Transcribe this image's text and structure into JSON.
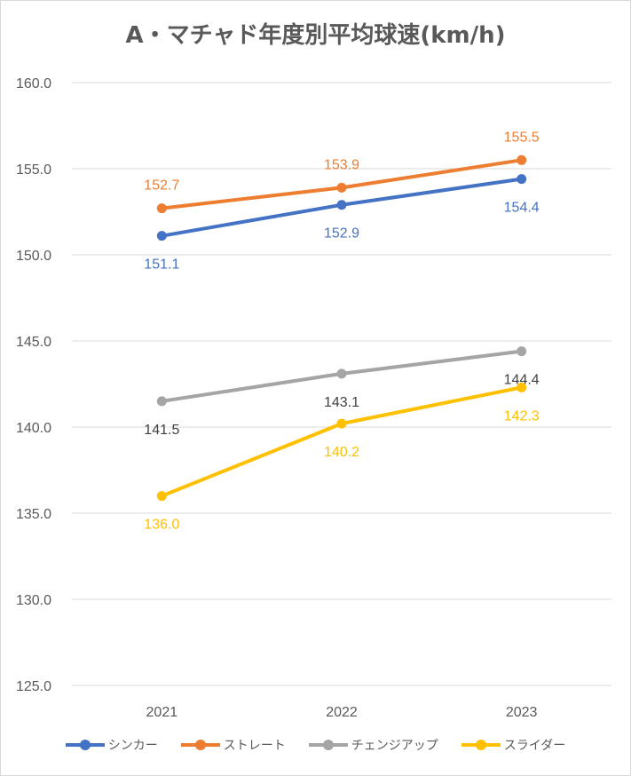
{
  "chart_data": {
    "type": "line",
    "title": "A・マチャド年度別平均球速(km/h)",
    "categories": [
      "2021",
      "2022",
      "2023"
    ],
    "ylim": [
      125.0,
      160.0
    ],
    "ytick_step": 5,
    "yticks": [
      "125.0",
      "130.0",
      "135.0",
      "140.0",
      "145.0",
      "150.0",
      "155.0",
      "160.0"
    ],
    "grid": true,
    "legend_position": "bottom",
    "series": [
      {
        "name": "シンカー",
        "values": [
          151.1,
          152.9,
          154.4
        ],
        "labels": [
          "151.1",
          "152.9",
          "154.4"
        ],
        "label_pos": [
          "below",
          "below",
          "below"
        ],
        "color": "#4472C4"
      },
      {
        "name": "ストレート",
        "values": [
          152.7,
          153.9,
          155.5
        ],
        "labels": [
          "152.7",
          "153.9",
          "155.5"
        ],
        "label_pos": [
          "above",
          "above",
          "above"
        ],
        "color": "#ED7D31"
      },
      {
        "name": "チェンジアップ",
        "values": [
          141.5,
          143.1,
          144.4
        ],
        "labels": [
          "141.5",
          "143.1",
          "144.4"
        ],
        "label_pos": [
          "below",
          "below",
          "below"
        ],
        "color": "#A5A5A5",
        "label_color": "#404040"
      },
      {
        "name": "スライダー",
        "values": [
          136.0,
          140.2,
          142.3
        ],
        "labels": [
          "136.0",
          "140.2",
          "142.3"
        ],
        "label_pos": [
          "below",
          "below",
          "below"
        ],
        "color": "#FFC000"
      }
    ]
  }
}
